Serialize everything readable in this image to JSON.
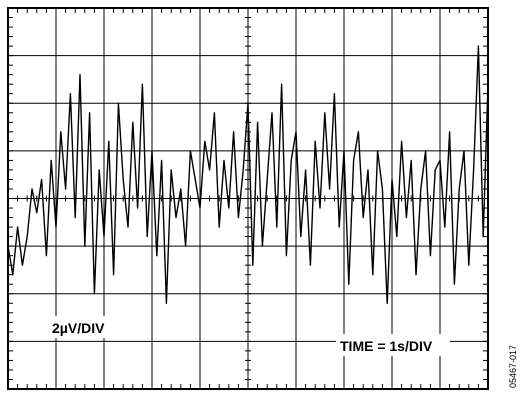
{
  "chart_data": {
    "type": "line",
    "title": "",
    "xlabel": "",
    "ylabel": "",
    "x_divisions": 10,
    "y_divisions": 8,
    "xlim": [
      0,
      10
    ],
    "ylim": [
      -4,
      4
    ],
    "grid": true,
    "series": [
      {
        "color": "#000000",
        "x": [
          0,
          0.1,
          0.2,
          0.3,
          0.4,
          0.5,
          0.6,
          0.7,
          0.8,
          0.9,
          1.0,
          1.1,
          1.2,
          1.3,
          1.4,
          1.5,
          1.6,
          1.7,
          1.8,
          1.9,
          2.0,
          2.1,
          2.2,
          2.3,
          2.4,
          2.5,
          2.6,
          2.7,
          2.8,
          2.9,
          3.0,
          3.1,
          3.2,
          3.3,
          3.4,
          3.5,
          3.6,
          3.7,
          3.8,
          3.9,
          4.0,
          4.1,
          4.2,
          4.3,
          4.4,
          4.5,
          4.6,
          4.7,
          4.8,
          4.9,
          5.0,
          5.1,
          5.2,
          5.3,
          5.4,
          5.5,
          5.6,
          5.7,
          5.8,
          5.9,
          6.0,
          6.1,
          6.2,
          6.3,
          6.4,
          6.5,
          6.6,
          6.7,
          6.8,
          6.9,
          7.0,
          7.1,
          7.2,
          7.3,
          7.4,
          7.5,
          7.6,
          7.7,
          7.8,
          7.9,
          8.0,
          8.1,
          8.2,
          8.3,
          8.4,
          8.5,
          8.6,
          8.7,
          8.8,
          8.9,
          9.0,
          9.1,
          9.2,
          9.3,
          9.4,
          9.5,
          9.6,
          9.7,
          9.8,
          9.9,
          10.0
        ],
        "y": [
          -1.0,
          -1.6,
          -0.6,
          -1.4,
          -0.8,
          0.2,
          -0.3,
          0.4,
          -1.2,
          0.8,
          -0.6,
          1.4,
          0.2,
          2.2,
          -0.4,
          2.6,
          -1.0,
          1.8,
          -2.0,
          0.6,
          -0.8,
          1.2,
          -1.6,
          2.0,
          0.4,
          -0.6,
          1.6,
          -0.2,
          2.4,
          -0.8,
          1.0,
          -1.2,
          0.8,
          -2.2,
          0.6,
          -0.4,
          0.2,
          -1.0,
          1.0,
          0.4,
          -0.2,
          1.2,
          0.6,
          1.8,
          -0.6,
          0.8,
          -0.2,
          1.4,
          -0.4,
          0.6,
          2.0,
          -1.4,
          1.6,
          -1.0,
          0.4,
          1.8,
          -0.6,
          2.4,
          -1.2,
          0.8,
          1.4,
          -0.8,
          0.6,
          -1.4,
          1.2,
          -0.2,
          1.8,
          0.2,
          2.2,
          -0.6,
          1.0,
          -1.8,
          0.8,
          1.4,
          -0.4,
          0.6,
          -1.6,
          1.0,
          0.2,
          -2.2,
          0.4,
          -0.8,
          1.2,
          -0.4,
          0.8,
          -1.6,
          0.2,
          1.0,
          -1.2,
          0.6,
          0.8,
          -0.6,
          1.4,
          -1.8,
          0.2,
          1.0,
          -1.4,
          0.6,
          3.2,
          -0.8,
          2.4
        ]
      }
    ],
    "annotations": [
      "2µV/DIV",
      "TIME = 1s/DIV"
    ],
    "figure_id": "05467-017"
  }
}
